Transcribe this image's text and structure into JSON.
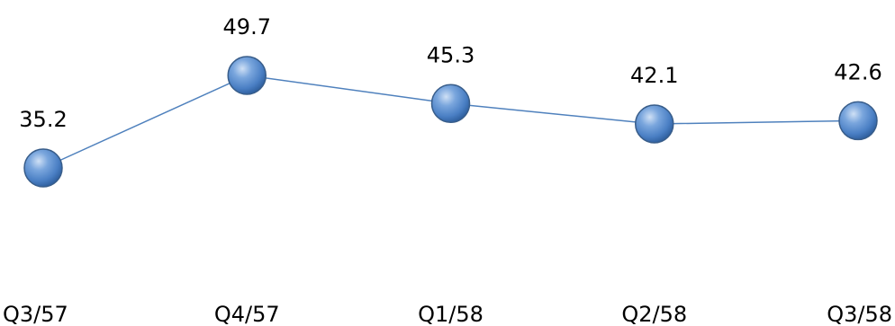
{
  "chart_data": {
    "type": "line",
    "title": "",
    "xlabel": "",
    "ylabel": "",
    "categories": [
      "Q3/57",
      "Q4/57",
      "Q1/58",
      "Q2/58",
      "Q3/58"
    ],
    "series": [
      {
        "values": [
          35.2,
          49.7,
          45.3,
          42.1,
          42.6
        ],
        "value_labels": [
          "35.2",
          "49.7",
          "45.3",
          "42.1",
          "42.6"
        ]
      }
    ],
    "ylim": [
      0,
      60
    ],
    "grid": false,
    "legend": "none",
    "colors": {
      "line": "#4f81bd",
      "marker_fill": "#4f81bd",
      "marker_edge": "#385d8a",
      "text": "#000000"
    }
  }
}
